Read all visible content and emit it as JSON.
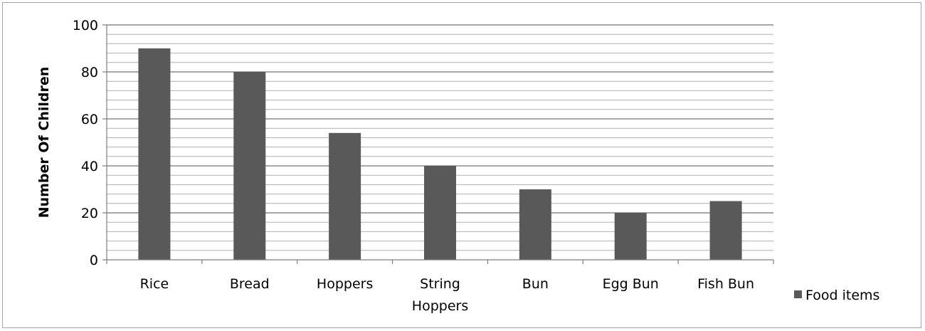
{
  "chart_data": {
    "type": "bar",
    "categories": [
      "Rice",
      "Bread",
      "Hoppers",
      "String Hoppers",
      "Bun",
      "Egg Bun",
      "Fish Bun"
    ],
    "category_lines": [
      [
        "Rice"
      ],
      [
        "Bread"
      ],
      [
        "Hoppers"
      ],
      [
        "String",
        "Hoppers"
      ],
      [
        "Bun"
      ],
      [
        "Egg Bun"
      ],
      [
        "Fish Bun"
      ]
    ],
    "series": [
      {
        "name": "Food items",
        "values": [
          90,
          80,
          54,
          40,
          30,
          20,
          25
        ],
        "color": "#595959"
      }
    ],
    "title": "",
    "xlabel": "",
    "ylabel": "Number Of Children",
    "ylim": [
      0,
      100
    ],
    "major_ticks": [
      0,
      20,
      40,
      60,
      80,
      100
    ],
    "minor_step": 4,
    "grid": true,
    "legend": {
      "position": "right",
      "label": "Food items"
    }
  }
}
